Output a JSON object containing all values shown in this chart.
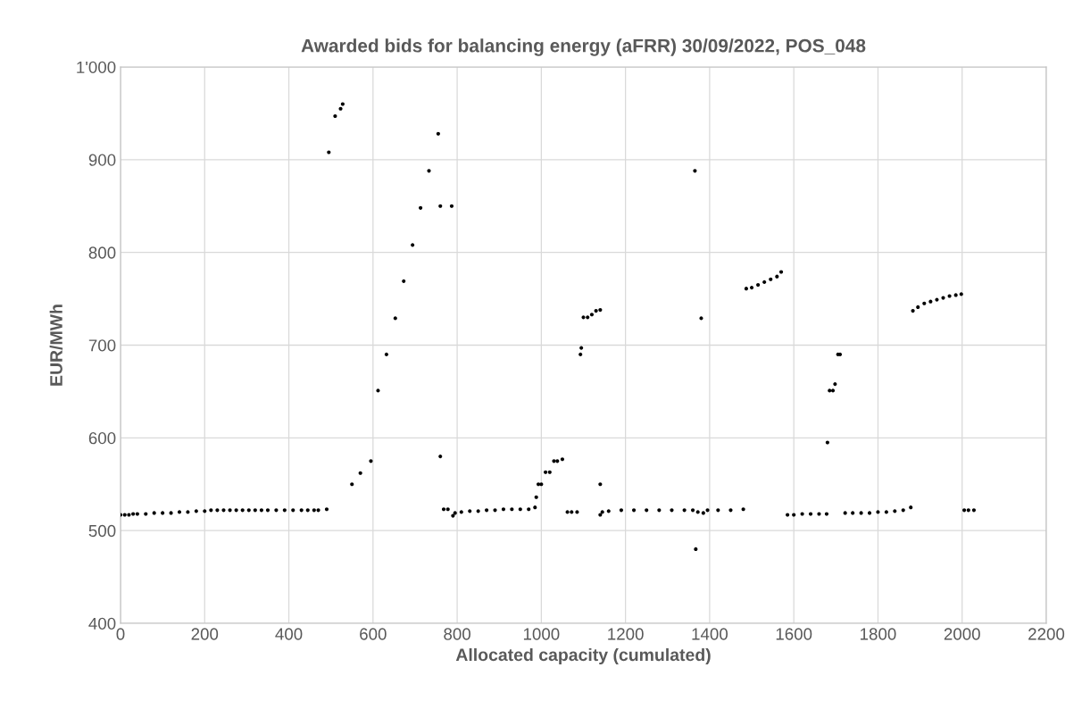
{
  "chart_data": {
    "type": "scatter",
    "title": "Awarded bids for balancing energy (aFRR) 30/09/2022, POS_048",
    "xlabel": "Allocated capacity (cumulated)",
    "ylabel": "EUR/MWh",
    "series": [
      {
        "color": "#000000",
        "x": [
          0,
          10,
          20,
          30,
          40,
          60,
          80,
          100,
          120,
          140,
          160,
          180,
          200,
          215,
          230,
          245,
          260,
          275,
          290,
          305,
          320,
          335,
          350,
          370,
          390,
          410,
          430,
          445,
          460,
          470,
          490,
          495,
          510,
          523,
          528,
          550,
          570,
          595,
          612,
          632,
          653,
          673,
          694,
          713,
          733,
          755,
          760,
          760,
          768,
          778,
          787,
          790,
          795,
          810,
          830,
          850,
          870,
          890,
          910,
          930,
          950,
          970,
          985,
          988,
          993,
          1000,
          1010,
          1020,
          1030,
          1038,
          1050,
          1062,
          1072,
          1085,
          1093,
          1095,
          1100,
          1110,
          1120,
          1130,
          1140,
          1140,
          1140,
          1145,
          1160,
          1190,
          1220,
          1250,
          1280,
          1310,
          1340,
          1360,
          1365,
          1367,
          1372,
          1380,
          1385,
          1395,
          1420,
          1450,
          1480,
          1487,
          1500,
          1515,
          1530,
          1545,
          1560,
          1570,
          1585,
          1600,
          1620,
          1640,
          1660,
          1678,
          1680,
          1685,
          1693,
          1698,
          1705,
          1710,
          1722,
          1740,
          1760,
          1780,
          1800,
          1820,
          1840,
          1860,
          1878,
          1883,
          1895,
          1910,
          1925,
          1940,
          1955,
          1970,
          1985,
          1998,
          2005,
          2015,
          2028
        ],
        "values": [
          517,
          517,
          517,
          518,
          518,
          518,
          519,
          519,
          519,
          520,
          520,
          521,
          521,
          522,
          522,
          522,
          522,
          522,
          522,
          522,
          522,
          522,
          522,
          522,
          522,
          522,
          522,
          522,
          522,
          522,
          523,
          908,
          947,
          955,
          960,
          550,
          562,
          575,
          651,
          690,
          729,
          769,
          808,
          848,
          888,
          928,
          580,
          850,
          523,
          523,
          850,
          516,
          519,
          520,
          521,
          521,
          522,
          522,
          523,
          523,
          523,
          523,
          525,
          536,
          550,
          550,
          563,
          563,
          575,
          575,
          577,
          520,
          520,
          520,
          690,
          697,
          730,
          730,
          733,
          737,
          738,
          550,
          517,
          520,
          521,
          522,
          522,
          522,
          522,
          522,
          522,
          522,
          888,
          480,
          520,
          729,
          519,
          522,
          522,
          522,
          523,
          761,
          762,
          765,
          768,
          771,
          774,
          779,
          517,
          517,
          518,
          518,
          518,
          518,
          595,
          651,
          651,
          658,
          690,
          690,
          519,
          519,
          519,
          519,
          520,
          520,
          521,
          522,
          525,
          737,
          741,
          745,
          747,
          749,
          751,
          753,
          754,
          755,
          522,
          522,
          522
        ]
      }
    ],
    "xlim": [
      0,
      2200
    ],
    "xticks": [
      0,
      200,
      400,
      600,
      800,
      1000,
      1200,
      1400,
      1600,
      1800,
      2000,
      2200
    ],
    "ylim": [
      400,
      1000
    ],
    "yticks": [
      400,
      500,
      600,
      700,
      800,
      900,
      {
        "value": 1000,
        "label": "1'000"
      }
    ],
    "grid": true,
    "marker": "circle",
    "legend": false
  }
}
